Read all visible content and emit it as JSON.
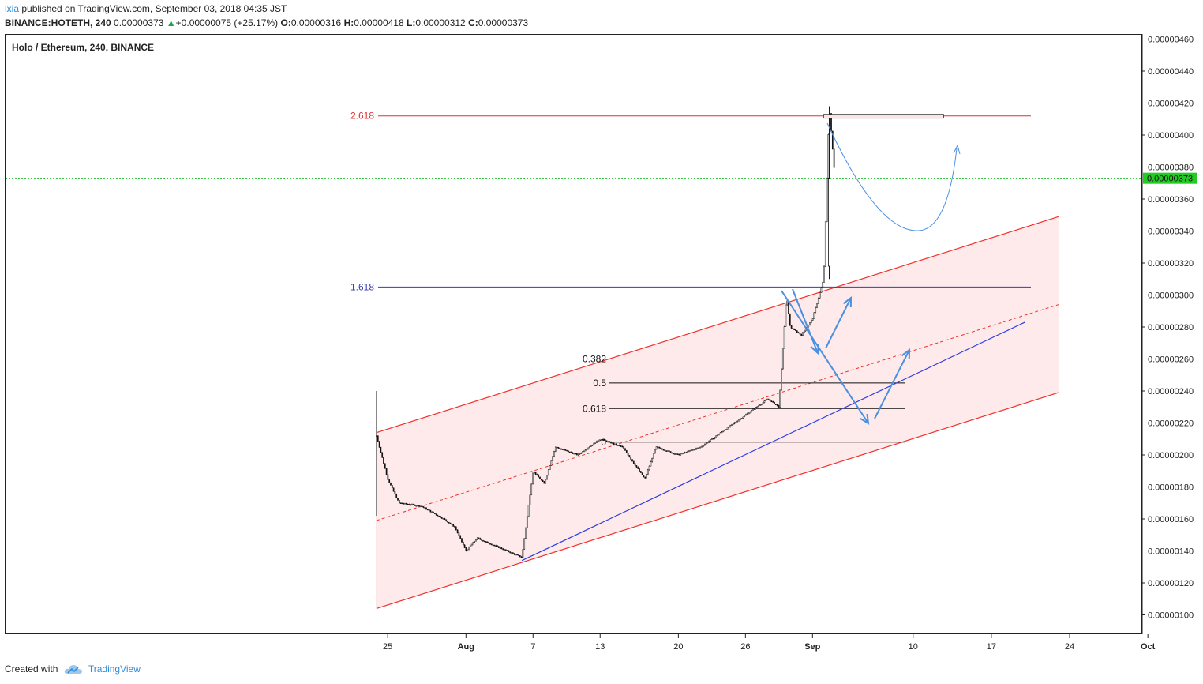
{
  "header": {
    "author": "ixia",
    "published_text": "published on TradingView.com, September 03, 2018 04:35 JST",
    "symbol": "BINANCE:HOTETH, 240",
    "last": "0.00000373",
    "change": "+0.00000075 (+25.17%)",
    "o_label": "O:",
    "o_value": "0.00000316",
    "h_label": "H:",
    "h_value": "0.00000418",
    "l_label": "L:",
    "l_value": "0.00000312",
    "c_label": "C:",
    "c_value": "0.00000373"
  },
  "footer": {
    "created_with": "Created with",
    "brand": "TradingView"
  },
  "colors": {
    "candle": "#111111",
    "channel": "#f0302a",
    "channel_fill": "#fde3e3",
    "fib_2618": "#e03030",
    "fib_1618": "#3a3ab0",
    "price_line": "#22bb33",
    "price_label_bg": "#22cc22",
    "trendline": "#2a3ee0",
    "arrow": "#4a90e2",
    "curve": "#4a90e2"
  },
  "chart_data": {
    "type": "candlestick",
    "title": "Holo / Ethereum, 240, BINANCE",
    "x_tick_labels": [
      "25",
      "Aug",
      "7",
      "13",
      "20",
      "26",
      "Sep",
      "10",
      "17",
      "24",
      "Oct"
    ],
    "y_tick_labels": [
      "0.00000460",
      "0.00000440",
      "0.00000420",
      "0.00000400",
      "0.00000380",
      "0.00000360",
      "0.00000340",
      "0.00000320",
      "0.00000300",
      "0.00000280",
      "0.00000260",
      "0.00000240",
      "0.00000220",
      "0.00000200",
      "0.00000180",
      "0.00000160",
      "0.00000140",
      "0.00000120",
      "0.00000100"
    ],
    "ylim": [
      9e-07,
      4.65e-06
    ],
    "current_price_label": "0.00000373",
    "current_price": 3.73e-06,
    "price_path": [
      [
        "2018-07-24",
        2.12e-06
      ],
      [
        "2018-07-25",
        1.85e-06
      ],
      [
        "2018-07-26",
        1.7e-06
      ],
      [
        "2018-07-28",
        1.68e-06
      ],
      [
        "2018-07-30",
        1.6e-06
      ],
      [
        "2018-07-31",
        1.55e-06
      ],
      [
        "2018-08-01",
        1.4e-06
      ],
      [
        "2018-08-02",
        1.48e-06
      ],
      [
        "2018-08-04",
        1.42e-06
      ],
      [
        "2018-08-06",
        1.36e-06
      ],
      [
        "2018-08-07",
        1.9e-06
      ],
      [
        "2018-08-08",
        1.82e-06
      ],
      [
        "2018-08-09",
        2.05e-06
      ],
      [
        "2018-08-11",
        2e-06
      ],
      [
        "2018-08-13",
        2.1e-06
      ],
      [
        "2018-08-15",
        2.05e-06
      ],
      [
        "2018-08-17",
        1.85e-06
      ],
      [
        "2018-08-18",
        2.05e-06
      ],
      [
        "2018-08-20",
        2e-06
      ],
      [
        "2018-08-22",
        2.05e-06
      ],
      [
        "2018-08-24",
        2.15e-06
      ],
      [
        "2018-08-26",
        2.25e-06
      ],
      [
        "2018-08-28",
        2.35e-06
      ],
      [
        "2018-08-29",
        2.3e-06
      ],
      [
        "2018-08-29T16:00",
        3e-06
      ],
      [
        "2018-08-30",
        2.8e-06
      ],
      [
        "2018-08-31",
        2.75e-06
      ],
      [
        "2018-09-01",
        2.85e-06
      ],
      [
        "2018-09-02",
        3.1e-06
      ],
      [
        "2018-09-02T12:00",
        4.18e-06
      ],
      [
        "2018-09-03",
        3.73e-06
      ]
    ],
    "fib_levels": [
      {
        "label": "2.618",
        "value": 4.12e-06
      },
      {
        "label": "1.618",
        "value": 3.05e-06
      },
      {
        "label": "0.382",
        "value": 2.6e-06
      },
      {
        "label": "0.5",
        "value": 2.45e-06
      },
      {
        "label": "0.618",
        "value": 2.29e-06
      },
      {
        "label": "0",
        "value": 2.08e-06
      }
    ],
    "channel": {
      "upper": [
        [
          "2018-07-24",
          2.14e-06
        ],
        [
          "2018-09-23",
          3.49e-06
        ]
      ],
      "mid": [
        [
          "2018-07-24",
          1.59e-06
        ],
        [
          "2018-09-23",
          2.94e-06
        ]
      ],
      "lower": [
        [
          "2018-07-24",
          1.04e-06
        ],
        [
          "2018-09-23",
          2.39e-06
        ]
      ]
    },
    "trendline": [
      [
        "2018-08-06",
        1.34e-06
      ],
      [
        "2018-09-20",
        2.83e-06
      ]
    ],
    "grid": false,
    "legend": "none"
  }
}
